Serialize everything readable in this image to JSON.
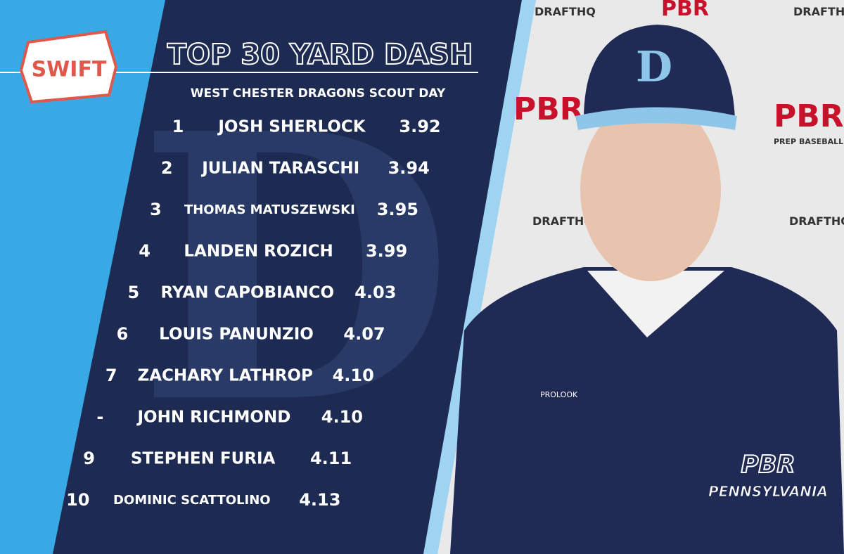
{
  "logo": {
    "text": "SWIFT"
  },
  "header": {
    "title": "TOP 30 YARD DASH",
    "subtitle": "WEST CHESTER DRAGONS SCOUT DAY"
  },
  "table": {
    "rows": [
      [
        "1",
        "JOSH SHERLOCK",
        "3.92"
      ],
      [
        "2",
        "JULIAN TARASCHI",
        "3.94"
      ],
      [
        "3",
        "THOMAS MATUSZEWSKI",
        "3.95"
      ],
      [
        "4",
        "LANDEN ROZICH",
        "3.99"
      ],
      [
        "5",
        "RYAN CAPOBIANCO",
        "4.03"
      ],
      [
        "6",
        "LOUIS PANUNZIO",
        "4.07"
      ],
      [
        "7",
        "ZACHARY LATHROP",
        "4.10"
      ],
      [
        "-",
        "JOHN RICHMOND",
        "4.10"
      ],
      [
        "9",
        "STEPHEN FURIA",
        "4.11"
      ],
      [
        "10",
        "DOMINIC SCATTOLINO",
        "4.13"
      ]
    ]
  },
  "backdrop": {
    "brand": "PBR",
    "tagline": "PREP BASEBALL REPORT",
    "sub_brand": "DRAFTHQ"
  },
  "jersey": {
    "maker": "PROLOOK"
  },
  "badge": {
    "brand": "PBR",
    "region": "PENNSYLVANIA"
  }
}
